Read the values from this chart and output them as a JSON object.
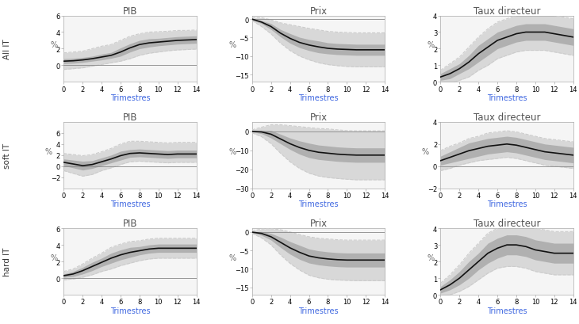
{
  "col_titles": [
    "PIB",
    "Prix",
    "Taux directeur"
  ],
  "row_labels": [
    "All IT",
    "soft IT",
    "hard IT"
  ],
  "xlabel": "Trimestres",
  "ylabel": "%",
  "title_color": "#555555",
  "xlabel_color": "#4169E1",
  "rows": [
    {
      "label": "All IT",
      "cols": [
        {
          "name": "PIB",
          "ylim": [
            -2,
            6
          ],
          "yticks": [
            0,
            2,
            4,
            6
          ],
          "center": [
            0.5,
            0.55,
            0.65,
            0.8,
            1.0,
            1.2,
            1.6,
            2.1,
            2.5,
            2.7,
            2.8,
            2.9,
            3.0,
            3.05,
            3.1
          ],
          "ci68_low": [
            0.2,
            0.25,
            0.35,
            0.5,
            0.65,
            0.85,
            1.1,
            1.6,
            2.0,
            2.2,
            2.35,
            2.45,
            2.55,
            2.6,
            2.65
          ],
          "ci68_high": [
            0.8,
            0.85,
            0.95,
            1.1,
            1.35,
            1.55,
            2.1,
            2.6,
            3.0,
            3.2,
            3.25,
            3.35,
            3.45,
            3.5,
            3.55
          ],
          "ci90_low": [
            -0.5,
            -0.4,
            -0.3,
            -0.1,
            0.1,
            0.3,
            0.5,
            0.8,
            1.2,
            1.45,
            1.6,
            1.75,
            1.85,
            1.9,
            1.95
          ],
          "ci90_high": [
            1.5,
            1.6,
            1.7,
            2.0,
            2.3,
            2.5,
            3.0,
            3.5,
            3.8,
            4.0,
            4.05,
            4.1,
            4.2,
            4.2,
            4.25
          ]
        },
        {
          "name": "Prix",
          "ylim": [
            -17,
            1
          ],
          "yticks": [
            -15,
            -10,
            -5,
            0
          ],
          "center": [
            0.0,
            -0.8,
            -2.0,
            -3.8,
            -5.2,
            -6.3,
            -7.0,
            -7.5,
            -7.9,
            -8.1,
            -8.2,
            -8.3,
            -8.3,
            -8.3,
            -8.3
          ],
          "ci68_low": [
            -0.2,
            -1.2,
            -2.8,
            -4.8,
            -6.5,
            -7.7,
            -8.5,
            -9.1,
            -9.4,
            -9.6,
            -9.7,
            -9.8,
            -9.8,
            -9.8,
            -9.8
          ],
          "ci68_high": [
            0.2,
            -0.4,
            -1.2,
            -2.8,
            -3.9,
            -4.9,
            -5.5,
            -5.9,
            -6.4,
            -6.6,
            -6.7,
            -6.8,
            -6.8,
            -6.8,
            -6.8
          ],
          "ci90_low": [
            -0.4,
            -2.0,
            -4.0,
            -6.5,
            -8.5,
            -10.0,
            -11.0,
            -11.8,
            -12.3,
            -12.6,
            -12.8,
            -12.9,
            -12.9,
            -12.9,
            -12.9
          ],
          "ci90_high": [
            0.4,
            0.4,
            -0.2,
            -1.0,
            -1.5,
            -2.0,
            -2.5,
            -2.9,
            -3.3,
            -3.5,
            -3.6,
            -3.7,
            -3.7,
            -3.7,
            -3.7
          ]
        },
        {
          "name": "Taux directeur",
          "ylim": [
            0,
            4
          ],
          "yticks": [
            0,
            1,
            2,
            3,
            4
          ],
          "center": [
            0.3,
            0.5,
            0.8,
            1.2,
            1.7,
            2.1,
            2.5,
            2.7,
            2.9,
            3.0,
            3.0,
            3.0,
            2.9,
            2.8,
            2.7
          ],
          "ci68_low": [
            0.1,
            0.2,
            0.5,
            0.8,
            1.2,
            1.6,
            2.0,
            2.2,
            2.4,
            2.5,
            2.5,
            2.5,
            2.4,
            2.3,
            2.2
          ],
          "ci68_high": [
            0.5,
            0.8,
            1.1,
            1.6,
            2.2,
            2.6,
            3.0,
            3.2,
            3.4,
            3.5,
            3.5,
            3.5,
            3.4,
            3.3,
            3.2
          ],
          "ci90_low": [
            -0.1,
            -0.1,
            0.1,
            0.3,
            0.7,
            1.0,
            1.4,
            1.6,
            1.8,
            1.9,
            1.9,
            1.9,
            1.8,
            1.7,
            1.6
          ],
          "ci90_high": [
            0.7,
            1.1,
            1.5,
            2.1,
            2.7,
            3.2,
            3.6,
            3.8,
            4.0,
            4.1,
            4.1,
            4.1,
            4.0,
            3.9,
            3.8
          ]
        }
      ]
    },
    {
      "label": "soft IT",
      "cols": [
        {
          "name": "PIB",
          "ylim": [
            -4,
            8
          ],
          "yticks": [
            -2,
            0,
            2,
            4,
            6
          ],
          "center": [
            0.7,
            0.4,
            0.1,
            0.3,
            0.8,
            1.3,
            1.9,
            2.3,
            2.4,
            2.3,
            2.2,
            2.1,
            2.2,
            2.2,
            2.2
          ],
          "ci68_low": [
            0.1,
            -0.3,
            -0.7,
            -0.4,
            0.1,
            0.6,
            1.1,
            1.6,
            1.7,
            1.6,
            1.5,
            1.4,
            1.5,
            1.5,
            1.5
          ],
          "ci68_high": [
            1.3,
            1.1,
            0.9,
            1.0,
            1.5,
            2.0,
            2.7,
            3.0,
            3.1,
            3.0,
            2.9,
            2.8,
            2.9,
            2.9,
            2.9
          ],
          "ci90_low": [
            -0.8,
            -1.3,
            -1.8,
            -1.5,
            -0.8,
            -0.3,
            0.3,
            0.8,
            0.9,
            0.8,
            0.7,
            0.6,
            0.7,
            0.7,
            0.7
          ],
          "ci90_high": [
            2.3,
            2.1,
            1.9,
            2.1,
            2.6,
            3.2,
            4.0,
            4.5,
            4.5,
            4.4,
            4.3,
            4.2,
            4.3,
            4.3,
            4.3
          ]
        },
        {
          "name": "Prix",
          "ylim": [
            -30,
            5
          ],
          "yticks": [
            -30,
            -20,
            -10,
            0
          ],
          "center": [
            0.0,
            -0.3,
            -1.5,
            -4.0,
            -6.5,
            -8.5,
            -10.0,
            -11.0,
            -11.5,
            -12.0,
            -12.3,
            -12.5,
            -12.5,
            -12.5,
            -12.5
          ],
          "ci68_low": [
            -0.3,
            -1.2,
            -3.5,
            -6.5,
            -9.5,
            -12.0,
            -13.8,
            -14.8,
            -15.3,
            -15.8,
            -16.1,
            -16.3,
            -16.3,
            -16.3,
            -16.3
          ],
          "ci68_high": [
            0.3,
            0.6,
            0.5,
            -1.5,
            -3.5,
            -5.0,
            -6.2,
            -7.2,
            -7.7,
            -8.2,
            -8.5,
            -8.7,
            -8.7,
            -8.7,
            -8.7
          ],
          "ci90_low": [
            -0.8,
            -2.8,
            -6.5,
            -11.5,
            -16.0,
            -19.5,
            -22.0,
            -23.5,
            -24.3,
            -24.8,
            -25.2,
            -25.5,
            -25.5,
            -25.5,
            -25.5
          ],
          "ci90_high": [
            0.8,
            2.2,
            3.5,
            3.5,
            3.0,
            2.5,
            2.0,
            1.5,
            1.3,
            0.8,
            0.4,
            0.3,
            0.3,
            0.3,
            0.3
          ]
        },
        {
          "name": "Taux directeur",
          "ylim": [
            -2,
            4
          ],
          "yticks": [
            -2,
            0,
            2,
            4
          ],
          "center": [
            0.5,
            0.8,
            1.1,
            1.4,
            1.6,
            1.8,
            1.9,
            2.0,
            1.9,
            1.7,
            1.5,
            1.3,
            1.2,
            1.1,
            1.0
          ],
          "ci68_low": [
            0.1,
            0.3,
            0.5,
            0.7,
            0.9,
            1.1,
            1.2,
            1.3,
            1.2,
            1.0,
            0.8,
            0.6,
            0.5,
            0.4,
            0.3
          ],
          "ci68_high": [
            0.9,
            1.3,
            1.7,
            2.1,
            2.3,
            2.5,
            2.6,
            2.7,
            2.6,
            2.4,
            2.2,
            2.0,
            1.9,
            1.8,
            1.7
          ],
          "ci90_low": [
            -0.4,
            -0.2,
            0.1,
            0.3,
            0.5,
            0.6,
            0.7,
            0.8,
            0.7,
            0.5,
            0.3,
            0.1,
            0.0,
            -0.1,
            -0.2
          ],
          "ci90_high": [
            1.4,
            1.8,
            2.1,
            2.5,
            2.7,
            3.0,
            3.1,
            3.2,
            3.1,
            2.9,
            2.7,
            2.5,
            2.4,
            2.3,
            2.2
          ]
        }
      ]
    },
    {
      "label": "hard IT",
      "cols": [
        {
          "name": "PIB",
          "ylim": [
            -2,
            6
          ],
          "yticks": [
            0,
            2,
            4,
            6
          ],
          "center": [
            0.3,
            0.5,
            0.9,
            1.4,
            1.9,
            2.4,
            2.8,
            3.1,
            3.3,
            3.5,
            3.6,
            3.6,
            3.6,
            3.6,
            3.6
          ],
          "ci68_low": [
            0.1,
            0.2,
            0.5,
            0.9,
            1.4,
            1.8,
            2.2,
            2.5,
            2.8,
            3.0,
            3.1,
            3.1,
            3.1,
            3.1,
            3.1
          ],
          "ci68_high": [
            0.5,
            0.8,
            1.3,
            1.9,
            2.4,
            3.0,
            3.4,
            3.7,
            3.8,
            4.0,
            4.1,
            4.1,
            4.1,
            4.1,
            4.1
          ],
          "ci90_low": [
            -0.2,
            -0.1,
            0.1,
            0.4,
            0.8,
            1.1,
            1.5,
            1.8,
            2.1,
            2.3,
            2.4,
            2.4,
            2.4,
            2.4,
            2.4
          ],
          "ci90_high": [
            0.8,
            1.1,
            1.7,
            2.4,
            3.0,
            3.7,
            4.1,
            4.4,
            4.5,
            4.7,
            4.8,
            4.8,
            4.8,
            4.8,
            4.8
          ]
        },
        {
          "name": "Prix",
          "ylim": [
            -17,
            1
          ],
          "yticks": [
            -15,
            -10,
            -5,
            0
          ],
          "center": [
            -0.05,
            -0.4,
            -1.3,
            -2.8,
            -4.3,
            -5.5,
            -6.5,
            -7.0,
            -7.3,
            -7.5,
            -7.6,
            -7.6,
            -7.6,
            -7.6,
            -7.6
          ],
          "ci68_low": [
            -0.2,
            -0.9,
            -2.2,
            -4.2,
            -6.0,
            -7.4,
            -8.4,
            -8.9,
            -9.2,
            -9.4,
            -9.5,
            -9.5,
            -9.5,
            -9.5,
            -9.5
          ],
          "ci68_high": [
            0.1,
            0.1,
            -0.4,
            -1.4,
            -2.6,
            -3.6,
            -4.6,
            -5.1,
            -5.4,
            -5.6,
            -5.7,
            -5.7,
            -5.7,
            -5.7,
            -5.7
          ],
          "ci90_low": [
            -0.4,
            -1.6,
            -3.5,
            -6.2,
            -8.5,
            -10.3,
            -11.7,
            -12.4,
            -12.8,
            -13.0,
            -13.1,
            -13.2,
            -13.2,
            -13.2,
            -13.2
          ],
          "ci90_high": [
            0.3,
            0.8,
            0.9,
            0.6,
            0.0,
            -0.7,
            -1.3,
            -1.7,
            -1.9,
            -2.1,
            -2.2,
            -2.2,
            -2.2,
            -2.2,
            -2.2
          ]
        },
        {
          "name": "Taux directeur",
          "ylim": [
            0,
            4
          ],
          "yticks": [
            0,
            1,
            2,
            3,
            4
          ],
          "center": [
            0.3,
            0.6,
            1.0,
            1.5,
            2.0,
            2.5,
            2.8,
            3.0,
            3.0,
            2.9,
            2.7,
            2.6,
            2.5,
            2.5,
            2.5
          ],
          "ci68_low": [
            0.1,
            0.3,
            0.6,
            1.0,
            1.5,
            1.9,
            2.2,
            2.4,
            2.4,
            2.3,
            2.1,
            2.0,
            1.9,
            1.9,
            1.9
          ],
          "ci68_high": [
            0.5,
            0.9,
            1.4,
            2.0,
            2.5,
            3.1,
            3.4,
            3.6,
            3.6,
            3.5,
            3.3,
            3.2,
            3.1,
            3.1,
            3.1
          ],
          "ci90_low": [
            -0.1,
            0.0,
            0.2,
            0.5,
            0.9,
            1.3,
            1.6,
            1.7,
            1.7,
            1.6,
            1.4,
            1.3,
            1.2,
            1.2,
            1.2
          ],
          "ci90_high": [
            0.7,
            1.2,
            1.8,
            2.5,
            3.1,
            3.7,
            4.0,
            4.3,
            4.3,
            4.2,
            4.0,
            3.9,
            3.8,
            3.8,
            3.8
          ]
        }
      ]
    }
  ],
  "ci68_color": "#b0b0b0",
  "ci90_color": "#d8d8d8",
  "center_color": "#111111",
  "zero_line_color": "#888888",
  "dashed_line_color": "#cccccc",
  "bg_color": "#ffffff",
  "plot_bg_color": "#f5f5f5",
  "title_fontsize": 8.5,
  "label_fontsize": 7,
  "tick_fontsize": 6,
  "row_label_fontsize": 7.5
}
